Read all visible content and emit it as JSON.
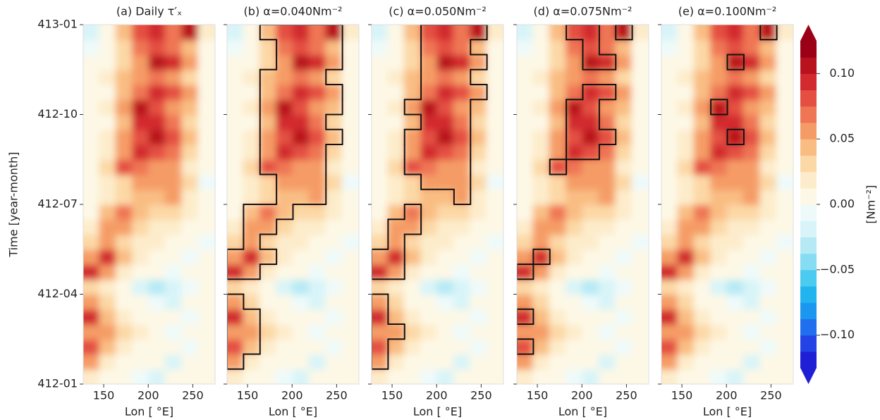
{
  "chart_data": [
    {
      "type": "heatmap",
      "title": "(a) Daily τ′ₓ",
      "xlabel": "Lon [ °E]",
      "ylabel": "Time [year-month]",
      "xlim": [
        127,
        275
      ],
      "xticks": [
        150,
        200,
        250
      ],
      "ylim": [
        0,
        12
      ],
      "yticks": [
        {
          "value": 0,
          "label": "412-01"
        },
        {
          "value": 3,
          "label": "412-04"
        },
        {
          "value": 6,
          "label": "412-07"
        },
        {
          "value": 9,
          "label": "412-10"
        },
        {
          "value": 12,
          "label": "413-01"
        }
      ],
      "lon": [
        136,
        155,
        173,
        192,
        210,
        229,
        247,
        266
      ],
      "time": [
        0.25,
        0.75,
        1.25,
        1.75,
        2.25,
        2.75,
        3.25,
        3.75,
        4.25,
        4.75,
        5.25,
        5.75,
        6.25,
        6.75,
        7.25,
        7.75,
        8.25,
        8.75,
        9.25,
        9.75,
        10.25,
        10.75,
        11.25,
        11.75
      ],
      "values": [
        [
          0.02,
          0.01,
          0.0,
          -0.01,
          -0.02,
          0.0,
          0.01,
          0.0
        ],
        [
          0.05,
          0.02,
          0.0,
          0.01,
          0.0,
          -0.02,
          0.0,
          0.01
        ],
        [
          0.08,
          0.04,
          0.02,
          0.01,
          0.0,
          0.0,
          -0.01,
          0.0
        ],
        [
          0.06,
          0.05,
          0.03,
          0.02,
          0.01,
          -0.01,
          0.0,
          0.0
        ],
        [
          0.09,
          0.04,
          0.02,
          0.0,
          0.01,
          0.0,
          -0.01,
          0.0
        ],
        [
          0.05,
          0.03,
          0.01,
          0.0,
          -0.01,
          -0.02,
          0.0,
          0.01
        ],
        [
          0.03,
          0.02,
          0.0,
          -0.02,
          -0.03,
          -0.02,
          -0.01,
          0.0
        ],
        [
          0.09,
          0.06,
          0.02,
          0.01,
          0.0,
          -0.01,
          0.0,
          0.0
        ],
        [
          0.06,
          0.09,
          0.04,
          0.02,
          0.01,
          0.0,
          -0.01,
          0.0
        ],
        [
          0.03,
          0.05,
          0.03,
          0.02,
          0.02,
          0.01,
          0.0,
          -0.01
        ],
        [
          0.02,
          0.06,
          0.05,
          0.03,
          0.02,
          0.02,
          0.01,
          0.0
        ],
        [
          0.01,
          0.04,
          0.07,
          0.04,
          0.03,
          0.03,
          0.02,
          0.01
        ],
        [
          0.0,
          0.02,
          0.03,
          0.04,
          0.04,
          0.05,
          0.02,
          0.0
        ],
        [
          0.01,
          0.02,
          0.03,
          0.06,
          0.05,
          0.06,
          0.03,
          -0.01
        ],
        [
          0.0,
          0.03,
          0.08,
          0.07,
          0.06,
          0.05,
          0.02,
          0.0
        ],
        [
          0.01,
          0.02,
          0.05,
          0.09,
          0.08,
          0.07,
          0.03,
          0.0
        ],
        [
          0.0,
          0.02,
          0.06,
          0.08,
          0.1,
          0.08,
          0.04,
          0.01
        ],
        [
          0.0,
          0.01,
          0.04,
          0.09,
          0.09,
          0.07,
          0.03,
          0.0
        ],
        [
          0.01,
          0.02,
          0.05,
          0.1,
          0.08,
          0.06,
          0.04,
          0.01
        ],
        [
          0.0,
          0.01,
          0.04,
          0.07,
          0.09,
          0.08,
          0.05,
          0.01
        ],
        [
          0.0,
          0.02,
          0.04,
          0.06,
          0.07,
          0.05,
          0.03,
          0.0
        ],
        [
          0.0,
          0.01,
          0.03,
          0.06,
          0.1,
          0.09,
          0.05,
          0.01
        ],
        [
          -0.01,
          0.0,
          0.03,
          0.07,
          0.08,
          0.07,
          0.04,
          0.0
        ],
        [
          -0.02,
          0.01,
          0.04,
          0.08,
          0.09,
          0.07,
          0.1,
          0.02
        ]
      ],
      "colorbar": {
        "label": "[Nm⁻²]",
        "clim": [
          -0.125,
          0.125
        ],
        "ticks": [
          {
            "value": 0.1,
            "label": "0.10"
          },
          {
            "value": 0.05,
            "label": "0.05"
          },
          {
            "value": 0,
            "label": "0.00"
          },
          {
            "value": -0.05,
            "label": "−0.05"
          },
          {
            "value": -0.1,
            "label": "−0.10"
          }
        ],
        "colors": [
          "#1f1fd6",
          "#2343e6",
          "#1f6fef",
          "#1c97f0",
          "#22b4ee",
          "#4ccbf0",
          "#86dcf2",
          "#b5eaf5",
          "#d8f4f8",
          "#eefafa",
          "#fdf8e6",
          "#fdeccb",
          "#fcd8a6",
          "#f9bd83",
          "#f59c66",
          "#ef7654",
          "#e44f42",
          "#d22a2f",
          "#b9121f",
          "#9c0016"
        ]
      }
    },
    {
      "type": "contour",
      "title": "(b) α=0.040Nm⁻²",
      "alpha": 0.04,
      "xlabel": "Lon [ °E]",
      "xlim": [
        127,
        275
      ],
      "xticks": [
        150,
        200,
        250
      ]
    },
    {
      "type": "contour",
      "title": "(c) α=0.050Nm⁻²",
      "alpha": 0.05,
      "xlabel": "Lon [ °E]",
      "xlim": [
        127,
        275
      ],
      "xticks": [
        150,
        200,
        250
      ]
    },
    {
      "type": "contour",
      "title": "(d) α=0.075Nm⁻²",
      "alpha": 0.075,
      "xlabel": "Lon [ °E]",
      "xlim": [
        127,
        275
      ],
      "xticks": [
        150,
        200,
        250
      ]
    },
    {
      "type": "contour",
      "title": "(e) α=0.100Nm⁻²",
      "alpha": 0.1,
      "xlabel": "Lon [ °E]",
      "xlim": [
        127,
        275
      ],
      "xticks": [
        150,
        200,
        250
      ]
    }
  ]
}
